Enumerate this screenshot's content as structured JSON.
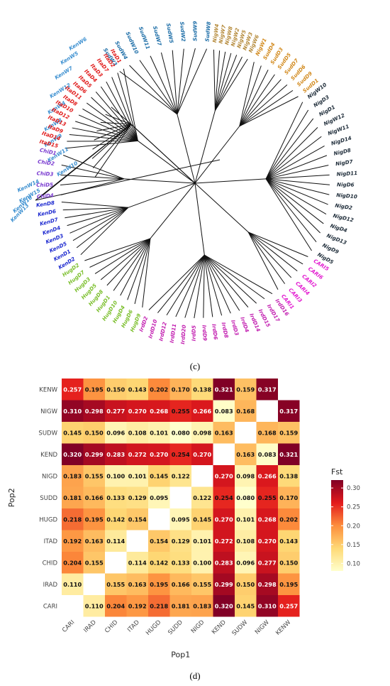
{
  "panel_c_label": "(c)",
  "panel_d_label": "(d)",
  "colors": {
    "KenW": "#3b8fd0",
    "SudW": "#1f6fa8",
    "NigW": "#b58a3a",
    "SudD": "#d28a1e",
    "NigD": "#1f2d3a",
    "CARI": "#e21bd0",
    "IrdD": "#c21eb0",
    "HugD": "#7bbf2c",
    "KenD": "#1f2bd0",
    "ChiD": "#7a3bd0",
    "ItaD": "#e01919",
    "branch": "#111111"
  },
  "tree_data": {
    "groups": [
      {
        "group": "KenW",
        "labels": [
          "KenW13",
          "KenW16",
          "KenW15",
          "KenW14",
          "KenW10",
          "KenW11",
          "KenW9",
          "KenW8",
          "KenW4",
          "KenW12",
          "KenW7",
          "KenW5",
          "KenW6"
        ]
      },
      {
        "group": "SudW",
        "labels": [
          "SudW3",
          "SudW4",
          "SudW10",
          "SudW11",
          "SudW7",
          "SudW5",
          "SudW2",
          "SudW9",
          "SudW8"
        ]
      },
      {
        "group": "NigW",
        "labels": [
          "NigW4",
          "NigW7",
          "NigW8",
          "NigW2",
          "NigW5",
          "NigW3",
          "NigW6"
        ]
      },
      {
        "group": "SudD",
        "labels": [
          "NigW1",
          "SudD4",
          "SudD3",
          "SudD5",
          "SudD7",
          "SudD6",
          "SudD9",
          "SudD1"
        ]
      },
      {
        "group": "NigD",
        "labels": [
          "NigW10",
          "NigD3",
          "NigD1",
          "NigW12",
          "NigW11",
          "NigD14",
          "NigD8",
          "NigD7",
          "NigD11",
          "NigD6",
          "NigD10",
          "NigD2",
          "NigD12",
          "NigD4",
          "NigD13",
          "NigD9",
          "NigD5"
        ]
      },
      {
        "group": "CARI",
        "labels": [
          "CARI5",
          "CARI6",
          "CARI2",
          "CARI4",
          "CARI3",
          "CARI1"
        ]
      },
      {
        "group": "IrdD",
        "labels": [
          "IrdD16",
          "IrdD17",
          "IrdD15",
          "IrdD14",
          "IrdD4",
          "IrdD3",
          "IrdD8",
          "IrdD6",
          "IrdD9",
          "IrdD5",
          "IrdD20",
          "IrdD11",
          "IrdD12",
          "IrdD10",
          "IrdD2"
        ]
      },
      {
        "group": "HugD",
        "labels": [
          "HugD9",
          "HugD6",
          "HugD4",
          "HugD10",
          "HugD1",
          "HugD8",
          "HugD5",
          "HugD3",
          "HugD7",
          "HugD2"
        ]
      },
      {
        "group": "KenD",
        "labels": [
          "KenD2",
          "KenD1",
          "KenD5",
          "KenD3",
          "KenD4",
          "KenD7",
          "KenD6",
          "KenD8"
        ]
      },
      {
        "group": "ChiD",
        "labels": [
          "ChiD4",
          "ChiD5",
          "ChiD3",
          "ChiD2",
          "ChiD1"
        ]
      },
      {
        "group": "ItaD",
        "labels": [
          "ItaD15",
          "ItaD14",
          "ItaD9",
          "ItaD13",
          "ItaD12",
          "ItaD10",
          "ItaD8",
          "ItaD11",
          "ItaD6",
          "ItaD5",
          "ItaD4",
          "ItaD3",
          "ItaD7",
          "ItaD2",
          "ItaD1"
        ]
      }
    ]
  },
  "chart_data": {
    "type": "heatmap",
    "title": "",
    "xlabel": "Pop1",
    "ylabel": "Pop2",
    "x_categories": [
      "CARI",
      "IRAD",
      "CHID",
      "ITAD",
      "HUGD",
      "SUDD",
      "NIGD",
      "KEND",
      "SUDW",
      "NIGW",
      "KENW"
    ],
    "y_categories": [
      "KENW",
      "NIGW",
      "SUDW",
      "KEND",
      "NIGD",
      "SUDD",
      "HUGD",
      "ITAD",
      "CHID",
      "IRAD",
      "CARI"
    ],
    "values": [
      [
        0.257,
        0.195,
        0.15,
        0.143,
        0.202,
        0.17,
        0.138,
        0.321,
        0.159,
        0.317,
        null
      ],
      [
        0.31,
        0.298,
        0.277,
        0.27,
        0.268,
        0.255,
        0.266,
        0.083,
        0.168,
        null,
        0.317
      ],
      [
        0.145,
        0.15,
        0.096,
        0.108,
        0.101,
        0.08,
        0.098,
        0.163,
        null,
        0.168,
        0.159
      ],
      [
        0.32,
        0.299,
        0.283,
        0.272,
        0.27,
        0.254,
        0.27,
        null,
        0.163,
        0.083,
        0.321
      ],
      [
        0.183,
        0.155,
        0.1,
        0.101,
        0.145,
        0.122,
        null,
        0.27,
        0.098,
        0.266,
        0.138
      ],
      [
        0.181,
        0.166,
        0.133,
        0.129,
        0.095,
        null,
        0.122,
        0.254,
        0.08,
        0.255,
        0.17
      ],
      [
        0.218,
        0.195,
        0.142,
        0.154,
        null,
        0.095,
        0.145,
        0.27,
        0.101,
        0.268,
        0.202
      ],
      [
        0.192,
        0.163,
        0.114,
        null,
        0.154,
        0.129,
        0.101,
        0.272,
        0.108,
        0.27,
        0.143
      ],
      [
        0.204,
        0.155,
        null,
        0.114,
        0.142,
        0.133,
        0.1,
        0.283,
        0.096,
        0.277,
        0.15
      ],
      [
        0.11,
        null,
        0.155,
        0.163,
        0.195,
        0.166,
        0.155,
        0.299,
        0.15,
        0.298,
        0.195
      ],
      [
        null,
        0.11,
        0.204,
        0.192,
        0.218,
        0.181,
        0.183,
        0.32,
        0.145,
        0.31,
        0.257
      ]
    ],
    "legend": {
      "title": "Fst",
      "ticks": [
        0.3,
        0.25,
        0.2,
        0.15,
        0.1
      ],
      "tick_labels": [
        "0.30",
        "0.25",
        "0.20",
        "0.15",
        "0.10"
      ],
      "range": [
        0.08,
        0.321
      ],
      "colors": [
        "#ffffcc",
        "#fed976",
        "#fd8d3c",
        "#e31a1c",
        "#800026"
      ],
      "placement": "right"
    }
  }
}
